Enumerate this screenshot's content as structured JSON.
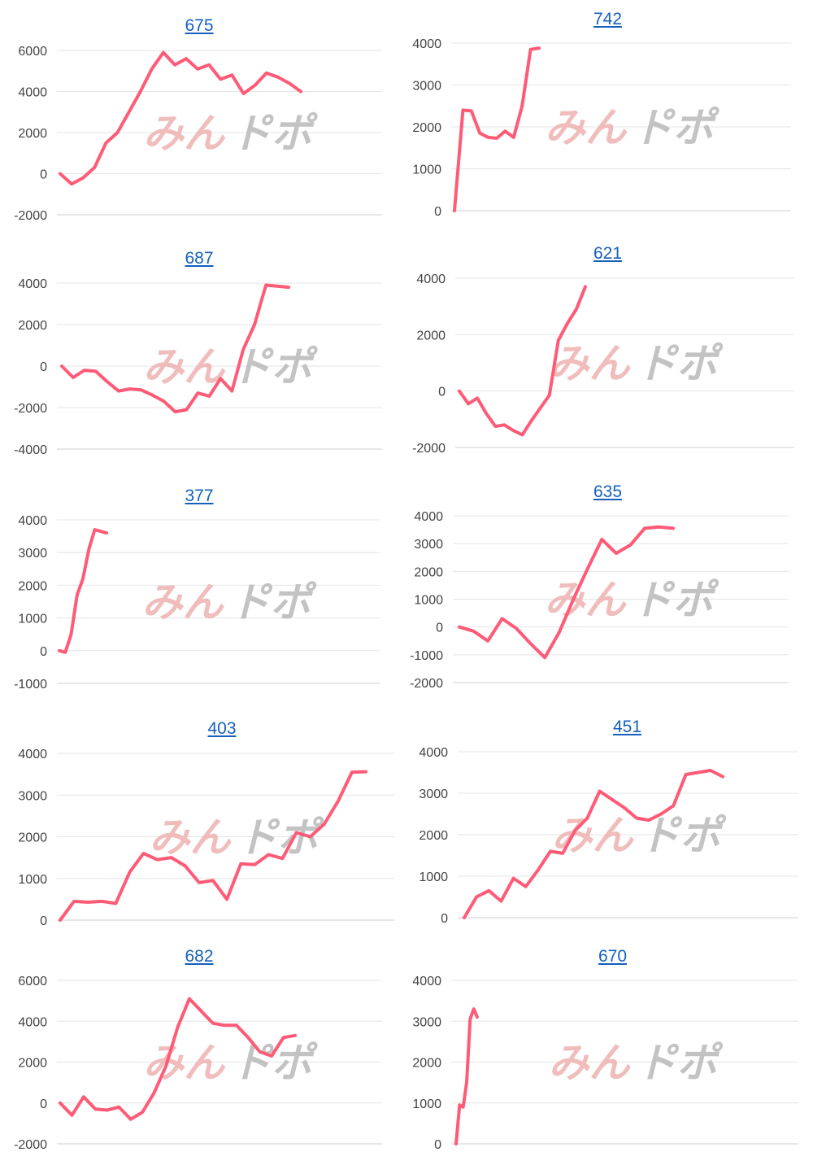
{
  "colors": {
    "series": "#ff5a76",
    "link": "#1560bd",
    "grid": "#e4e4e4"
  },
  "watermark": {
    "text_left": "みん",
    "text_right": "ト゚ポ"
  },
  "chart_data": [
    {
      "type": "line",
      "title": "675",
      "ylim": [
        -2000,
        6000
      ],
      "yticks": [
        6000,
        4000,
        2000,
        0,
        -2000
      ],
      "series": [
        {
          "values": [
            0,
            -500,
            -200,
            300,
            1500,
            2000,
            3000,
            4000,
            5100,
            5900,
            5300,
            5600,
            5100,
            5300,
            4600,
            4800,
            3900,
            4300,
            4900,
            4700,
            4400,
            4000
          ]
        }
      ]
    },
    {
      "type": "line",
      "title": "742",
      "ylim": [
        0,
        4000
      ],
      "yticks": [
        4000,
        3000,
        2000,
        1000,
        0
      ],
      "series": [
        {
          "values": [
            0,
            2400,
            2380,
            1850,
            1750,
            1730,
            1900,
            1750,
            2500,
            3850,
            3880
          ]
        }
      ]
    },
    {
      "type": "line",
      "title": "687",
      "ylim": [
        -4000,
        4000
      ],
      "yticks": [
        4000,
        2000,
        0,
        -2000,
        -4000
      ],
      "series": [
        {
          "values": [
            0,
            -550,
            -200,
            -250,
            -750,
            -1200,
            -1100,
            -1150,
            -1400,
            -1700,
            -2200,
            -2100,
            -1300,
            -1450,
            -600,
            -1200,
            800,
            2000,
            3900,
            3850,
            3800
          ]
        }
      ]
    },
    {
      "type": "line",
      "title": "621",
      "ylim": [
        -2000,
        4000
      ],
      "yticks": [
        4000,
        2000,
        0,
        -2000
      ],
      "series": [
        {
          "values": [
            0,
            -450,
            -250,
            -800,
            -1250,
            -1200,
            -1400,
            -1550,
            -1050,
            -600,
            -150,
            1800,
            2400,
            2900,
            3700
          ]
        }
      ]
    },
    {
      "type": "line",
      "title": "377",
      "ylim": [
        -1000,
        4000
      ],
      "yticks": [
        4000,
        3000,
        2000,
        1000,
        0,
        -1000
      ],
      "series": [
        {
          "values": [
            0,
            -50,
            500,
            1700,
            2200,
            3100,
            3700,
            3650,
            3600
          ]
        }
      ]
    },
    {
      "type": "line",
      "title": "635",
      "ylim": [
        -2000,
        4000
      ],
      "yticks": [
        4000,
        3000,
        2000,
        1000,
        0,
        -1000,
        -2000
      ],
      "series": [
        {
          "values": [
            0,
            -150,
            -500,
            300,
            -50,
            -600,
            -1100,
            -200,
            1000,
            2100,
            3150,
            2650,
            2950,
            3550,
            3600,
            3550
          ]
        }
      ]
    },
    {
      "type": "line",
      "title": "403",
      "ylim": [
        0,
        4000
      ],
      "yticks": [
        4000,
        3000,
        2000,
        1000,
        0
      ],
      "series": [
        {
          "values": [
            0,
            450,
            430,
            450,
            400,
            1150,
            1600,
            1450,
            1500,
            1300,
            900,
            950,
            500,
            1350,
            1330,
            1570,
            1480,
            2100,
            2000,
            2300,
            2850,
            3550,
            3560
          ]
        }
      ]
    },
    {
      "type": "line",
      "title": "451",
      "ylim": [
        0,
        4000
      ],
      "yticks": [
        4000,
        3000,
        2000,
        1000,
        0
      ],
      "series": [
        {
          "values": [
            0,
            500,
            650,
            400,
            950,
            750,
            1150,
            1600,
            1550,
            2100,
            2400,
            3050,
            2850,
            2650,
            2400,
            2350,
            2500,
            2700,
            3450,
            3500,
            3550,
            3400
          ]
        }
      ]
    },
    {
      "type": "line",
      "title": "682",
      "ylim": [
        -2000,
        6000
      ],
      "yticks": [
        6000,
        4000,
        2000,
        0,
        -2000
      ],
      "series": [
        {
          "values": [
            0,
            -600,
            300,
            -300,
            -350,
            -200,
            -800,
            -450,
            500,
            1800,
            3700,
            5100,
            4500,
            3900,
            3800,
            3800,
            3200,
            2500,
            2300,
            3200,
            3300
          ]
        }
      ]
    },
    {
      "type": "line",
      "title": "670",
      "ylim": [
        0,
        4000
      ],
      "yticks": [
        4000,
        3000,
        2000,
        1000,
        0
      ],
      "series": [
        {
          "values": [
            0,
            950,
            900,
            1500,
            3050,
            3300,
            3100
          ]
        }
      ]
    }
  ]
}
